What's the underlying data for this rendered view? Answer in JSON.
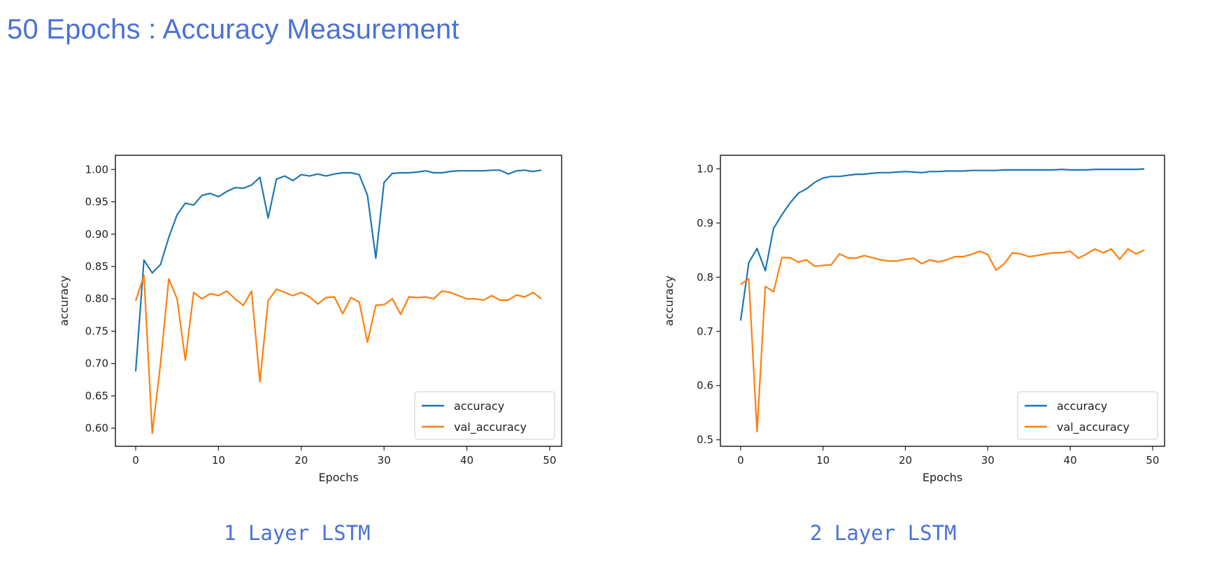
{
  "slide": {
    "title": "50 Epochs : Accuracy Measurement"
  },
  "captions": [
    "1 Layer LSTM",
    "2 Layer LSTM"
  ],
  "colors": {
    "accent": "#4a72d4",
    "accuracy": "#1f77b4",
    "val_accuracy": "#ff7f0e"
  },
  "chart_data": [
    {
      "type": "line",
      "title": "",
      "xlabel": "Epochs",
      "ylabel": "accuracy",
      "xlim": [
        -2.45,
        51.45
      ],
      "ylim": [
        0.572,
        1.022
      ],
      "xticks": [
        0,
        10,
        20,
        30,
        40,
        50
      ],
      "xtick_labels": [
        "0",
        "10",
        "20",
        "30",
        "40",
        "50"
      ],
      "yticks": [
        0.6,
        0.65,
        0.7,
        0.75,
        0.8,
        0.85,
        0.9,
        0.95,
        1.0
      ],
      "ytick_labels": [
        "0.60",
        "0.65",
        "0.70",
        "0.75",
        "0.80",
        "0.85",
        "0.90",
        "0.95",
        "1.00"
      ],
      "grid": false,
      "legend": "lower-right",
      "x": [
        0,
        1,
        2,
        3,
        4,
        5,
        6,
        7,
        8,
        9,
        10,
        11,
        12,
        13,
        14,
        15,
        16,
        17,
        18,
        19,
        20,
        21,
        22,
        23,
        24,
        25,
        26,
        27,
        28,
        29,
        30,
        31,
        32,
        33,
        34,
        35,
        36,
        37,
        38,
        39,
        40,
        41,
        42,
        43,
        44,
        45,
        46,
        47,
        48,
        49
      ],
      "series": [
        {
          "name": "accuracy",
          "values": [
            0.688,
            0.86,
            0.84,
            0.853,
            0.895,
            0.93,
            0.948,
            0.945,
            0.96,
            0.963,
            0.958,
            0.966,
            0.972,
            0.971,
            0.976,
            0.988,
            0.925,
            0.985,
            0.99,
            0.983,
            0.992,
            0.99,
            0.993,
            0.99,
            0.993,
            0.995,
            0.995,
            0.992,
            0.96,
            0.863,
            0.98,
            0.994,
            0.995,
            0.995,
            0.996,
            0.998,
            0.995,
            0.995,
            0.997,
            0.998,
            0.998,
            0.998,
            0.998,
            0.999,
            0.999,
            0.993,
            0.998,
            0.999,
            0.997,
            0.999
          ]
        },
        {
          "name": "val_accuracy",
          "values": [
            0.797,
            0.836,
            0.592,
            0.7,
            0.831,
            0.8,
            0.705,
            0.81,
            0.8,
            0.808,
            0.805,
            0.812,
            0.8,
            0.79,
            0.812,
            0.672,
            0.797,
            0.815,
            0.81,
            0.805,
            0.81,
            0.803,
            0.792,
            0.802,
            0.803,
            0.777,
            0.802,
            0.795,
            0.733,
            0.79,
            0.791,
            0.8,
            0.776,
            0.803,
            0.802,
            0.803,
            0.8,
            0.812,
            0.81,
            0.805,
            0.8,
            0.8,
            0.798,
            0.805,
            0.798,
            0.798,
            0.806,
            0.803,
            0.81,
            0.8
          ]
        }
      ]
    },
    {
      "type": "line",
      "title": "",
      "xlabel": "Epochs",
      "ylabel": "accuracy",
      "xlim": [
        -2.45,
        51.45
      ],
      "ylim": [
        0.488,
        1.025
      ],
      "xticks": [
        0,
        10,
        20,
        30,
        40,
        50
      ],
      "xtick_labels": [
        "0",
        "10",
        "20",
        "30",
        "40",
        "50"
      ],
      "yticks": [
        0.5,
        0.6,
        0.7,
        0.8,
        0.9,
        1.0
      ],
      "ytick_labels": [
        "0.5",
        "0.6",
        "0.7",
        "0.8",
        "0.9",
        "1.0"
      ],
      "grid": false,
      "legend": "lower-right",
      "x": [
        0,
        1,
        2,
        3,
        4,
        5,
        6,
        7,
        8,
        9,
        10,
        11,
        12,
        13,
        14,
        15,
        16,
        17,
        18,
        19,
        20,
        21,
        22,
        23,
        24,
        25,
        26,
        27,
        28,
        29,
        30,
        31,
        32,
        33,
        34,
        35,
        36,
        37,
        38,
        39,
        40,
        41,
        42,
        43,
        44,
        45,
        46,
        47,
        48,
        49
      ],
      "series": [
        {
          "name": "accuracy",
          "values": [
            0.72,
            0.827,
            0.853,
            0.812,
            0.89,
            0.915,
            0.937,
            0.955,
            0.963,
            0.975,
            0.983,
            0.986,
            0.986,
            0.988,
            0.99,
            0.99,
            0.992,
            0.993,
            0.993,
            0.994,
            0.995,
            0.994,
            0.993,
            0.995,
            0.995,
            0.996,
            0.996,
            0.996,
            0.997,
            0.997,
            0.997,
            0.997,
            0.998,
            0.998,
            0.998,
            0.998,
            0.998,
            0.998,
            0.998,
            0.999,
            0.998,
            0.998,
            0.998,
            0.999,
            0.999,
            0.999,
            0.999,
            0.999,
            0.999,
            1.0
          ]
        },
        {
          "name": "val_accuracy",
          "values": [
            0.787,
            0.797,
            0.515,
            0.783,
            0.773,
            0.836,
            0.836,
            0.828,
            0.832,
            0.82,
            0.822,
            0.823,
            0.843,
            0.836,
            0.835,
            0.84,
            0.836,
            0.832,
            0.83,
            0.83,
            0.833,
            0.835,
            0.825,
            0.832,
            0.828,
            0.832,
            0.838,
            0.838,
            0.842,
            0.848,
            0.842,
            0.813,
            0.825,
            0.845,
            0.843,
            0.838,
            0.84,
            0.843,
            0.845,
            0.845,
            0.848,
            0.835,
            0.843,
            0.852,
            0.845,
            0.852,
            0.833,
            0.852,
            0.843,
            0.85
          ]
        }
      ]
    }
  ]
}
